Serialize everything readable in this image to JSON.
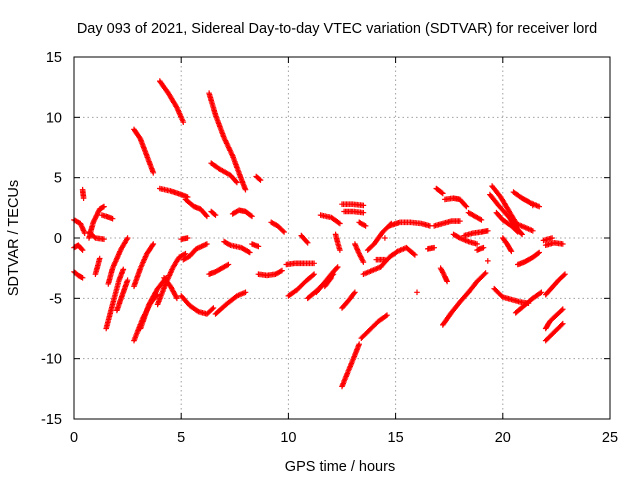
{
  "chart_data": {
    "type": "scatter",
    "title": "Day 093 of 2021, Sidereal Day-to-day VTEC variation (SDTVAR) for receiver lord",
    "xlabel": "GPS time / hours",
    "ylabel": "SDTVAR / TECUs",
    "xlim": [
      0,
      25
    ],
    "ylim": [
      -15,
      15
    ],
    "xticks": [
      0,
      5,
      10,
      15,
      20,
      25
    ],
    "yticks": [
      -15,
      -10,
      -5,
      0,
      5,
      10,
      15
    ],
    "grid": true,
    "marker": "+",
    "color": "#ff0000",
    "segments": [
      [
        [
          0.0,
          1.5
        ],
        [
          0.3,
          1.2
        ],
        [
          0.5,
          0.4
        ]
      ],
      [
        [
          0.0,
          -0.8
        ],
        [
          0.2,
          -0.6
        ],
        [
          0.4,
          -1.0
        ]
      ],
      [
        [
          0.0,
          -2.8
        ],
        [
          0.2,
          -3.1
        ],
        [
          0.4,
          -3.3
        ]
      ],
      [
        [
          0.4,
          4.0
        ],
        [
          0.45,
          3.3
        ]
      ],
      [
        [
          0.7,
          0.0
        ],
        [
          0.9,
          1.3
        ],
        [
          1.2,
          2.4
        ],
        [
          1.4,
          2.6
        ]
      ],
      [
        [
          0.7,
          0.5
        ],
        [
          1.0,
          0.0
        ],
        [
          1.4,
          -0.1
        ]
      ],
      [
        [
          1.3,
          1.9
        ],
        [
          1.5,
          1.8
        ],
        [
          1.8,
          1.6
        ]
      ],
      [
        [
          1.0,
          -3.0
        ],
        [
          1.2,
          -1.7
        ]
      ],
      [
        [
          1.5,
          -7.5
        ],
        [
          1.8,
          -5.5
        ],
        [
          2.1,
          -3.5
        ],
        [
          2.3,
          -2.6
        ]
      ],
      [
        [
          1.6,
          -3.8
        ],
        [
          1.8,
          -2.5
        ],
        [
          2.2,
          -0.9
        ],
        [
          2.5,
          0.0
        ]
      ],
      [
        [
          2.0,
          -6.0
        ],
        [
          2.3,
          -4.5
        ],
        [
          2.5,
          -3.5
        ]
      ],
      [
        [
          2.8,
          9.0
        ],
        [
          3.1,
          8.2
        ],
        [
          3.4,
          6.8
        ],
        [
          3.7,
          5.4
        ]
      ],
      [
        [
          2.8,
          -8.5
        ],
        [
          3.2,
          -6.7
        ],
        [
          3.6,
          -5.3
        ],
        [
          3.9,
          -4.7
        ]
      ],
      [
        [
          2.8,
          -4.0
        ],
        [
          3.1,
          -2.5
        ],
        [
          3.4,
          -1.3
        ],
        [
          3.7,
          -0.5
        ]
      ],
      [
        [
          3.1,
          -7.5
        ],
        [
          3.5,
          -5.5
        ],
        [
          3.9,
          -4.2
        ],
        [
          4.3,
          -3.3
        ]
      ],
      [
        [
          4.0,
          13.0
        ],
        [
          4.4,
          12.0
        ],
        [
          4.8,
          10.8
        ],
        [
          5.1,
          9.6
        ]
      ],
      [
        [
          4.0,
          4.1
        ],
        [
          4.5,
          3.9
        ],
        [
          5.0,
          3.6
        ],
        [
          5.3,
          3.4
        ]
      ],
      [
        [
          3.9,
          -5.5
        ],
        [
          4.3,
          -3.7
        ],
        [
          4.6,
          -2.5
        ],
        [
          4.9,
          -1.6
        ],
        [
          5.2,
          -1.3
        ]
      ],
      [
        [
          4.2,
          -3.3
        ],
        [
          4.5,
          -4.0
        ],
        [
          4.8,
          -5.0
        ]
      ],
      [
        [
          5.2,
          3.2
        ],
        [
          5.6,
          2.6
        ],
        [
          5.9,
          2.4
        ],
        [
          6.2,
          1.8
        ]
      ],
      [
        [
          5.0,
          -4.8
        ],
        [
          5.4,
          -5.6
        ],
        [
          5.8,
          -6.1
        ],
        [
          6.2,
          -6.3
        ],
        [
          6.5,
          -5.8
        ]
      ],
      [
        [
          5.1,
          -1.8
        ],
        [
          5.4,
          -1.5
        ],
        [
          5.7,
          -0.9
        ],
        [
          6.2,
          -0.5
        ]
      ],
      [
        [
          5.0,
          -0.1
        ],
        [
          5.3,
          0.0
        ]
      ],
      [
        [
          6.3,
          12.0
        ],
        [
          6.6,
          10.2
        ],
        [
          7.0,
          8.3
        ],
        [
          7.4,
          6.8
        ],
        [
          7.8,
          4.9
        ],
        [
          8.0,
          4.0
        ]
      ],
      [
        [
          6.4,
          6.2
        ],
        [
          6.8,
          5.7
        ],
        [
          7.3,
          5.2
        ],
        [
          7.6,
          4.6
        ]
      ],
      [
        [
          6.4,
          2.2
        ],
        [
          6.6,
          1.9
        ]
      ],
      [
        [
          6.3,
          -3.0
        ],
        [
          6.6,
          -2.8
        ],
        [
          6.9,
          -2.5
        ],
        [
          7.2,
          -2.2
        ]
      ],
      [
        [
          6.6,
          -6.3
        ],
        [
          7.1,
          -5.5
        ],
        [
          7.6,
          -4.8
        ],
        [
          8.0,
          -4.5
        ]
      ],
      [
        [
          7.0,
          -0.3
        ],
        [
          7.3,
          -0.6
        ],
        [
          7.8,
          -0.8
        ],
        [
          8.2,
          -1.2
        ]
      ],
      [
        [
          7.4,
          2.0
        ],
        [
          7.7,
          2.3
        ],
        [
          8.0,
          2.2
        ],
        [
          8.3,
          1.8
        ]
      ],
      [
        [
          8.3,
          -0.5
        ],
        [
          8.6,
          -0.7
        ]
      ],
      [
        [
          8.5,
          5.1
        ],
        [
          8.7,
          4.8
        ]
      ],
      [
        [
          8.6,
          -3.0
        ],
        [
          9.0,
          -3.1
        ],
        [
          9.4,
          -3.0
        ],
        [
          9.7,
          -2.7
        ]
      ],
      [
        [
          9.2,
          1.3
        ],
        [
          9.5,
          1.0
        ],
        [
          9.8,
          0.5
        ]
      ],
      [
        [
          9.9,
          -2.2
        ],
        [
          10.3,
          -2.1
        ],
        [
          10.7,
          -2.1
        ],
        [
          11.2,
          -2.1
        ]
      ],
      [
        [
          10.0,
          -4.8
        ],
        [
          10.4,
          -4.3
        ],
        [
          10.8,
          -3.6
        ],
        [
          11.2,
          -3.0
        ]
      ],
      [
        [
          10.6,
          0.2
        ],
        [
          10.9,
          -0.4
        ]
      ],
      [
        [
          10.9,
          -5.0
        ],
        [
          11.3,
          -4.4
        ],
        [
          11.8,
          -3.5
        ],
        [
          12.1,
          -3.0
        ]
      ],
      [
        [
          11.3,
          -4.5
        ],
        [
          11.6,
          -3.9
        ],
        [
          12.0,
          -3.0
        ],
        [
          12.3,
          -2.4
        ]
      ],
      [
        [
          11.7,
          -4.0
        ],
        [
          12.0,
          -3.3
        ]
      ],
      [
        [
          11.5,
          1.9
        ],
        [
          12.0,
          1.7
        ],
        [
          12.4,
          1.2
        ]
      ],
      [
        [
          12.2,
          0.3
        ],
        [
          12.3,
          -0.4
        ],
        [
          12.4,
          -1.0
        ]
      ],
      [
        [
          12.5,
          -12.3
        ],
        [
          12.8,
          -11.0
        ],
        [
          13.1,
          -9.7
        ],
        [
          13.3,
          -8.8
        ]
      ],
      [
        [
          12.5,
          -5.8
        ],
        [
          12.8,
          -5.2
        ],
        [
          13.1,
          -4.5
        ]
      ],
      [
        [
          12.5,
          2.8
        ],
        [
          13.0,
          2.8
        ],
        [
          13.5,
          2.7
        ]
      ],
      [
        [
          12.6,
          2.2
        ],
        [
          13.0,
          2.2
        ],
        [
          13.5,
          2.1
        ]
      ],
      [
        [
          13.1,
          -0.5
        ],
        [
          13.3,
          -1.3
        ],
        [
          13.5,
          -2.0
        ]
      ],
      [
        [
          13.3,
          1.3
        ],
        [
          13.6,
          1.0
        ]
      ],
      [
        [
          13.5,
          -3.0
        ],
        [
          13.9,
          -2.7
        ],
        [
          14.3,
          -2.4
        ]
      ],
      [
        [
          13.4,
          -8.3
        ],
        [
          13.8,
          -7.6
        ],
        [
          14.2,
          -6.9
        ],
        [
          14.6,
          -6.4
        ]
      ],
      [
        [
          13.7,
          -1.0
        ],
        [
          14.0,
          -0.5
        ],
        [
          14.4,
          0.5
        ],
        [
          14.8,
          1.2
        ]
      ],
      [
        [
          14.1,
          -1.8
        ],
        [
          14.5,
          -1.8
        ]
      ],
      [
        [
          14.3,
          -2.4
        ],
        [
          14.7,
          -1.6
        ],
        [
          15.1,
          -1.1
        ],
        [
          15.5,
          -0.8
        ],
        [
          15.9,
          -1.4
        ]
      ],
      [
        [
          14.5,
          0.0
        ]
      ],
      [
        [
          14.7,
          1.0
        ],
        [
          15.2,
          1.3
        ],
        [
          15.7,
          1.3
        ],
        [
          16.2,
          1.2
        ],
        [
          16.6,
          1.0
        ]
      ],
      [
        [
          16.0,
          -4.5
        ]
      ],
      [
        [
          16.5,
          -0.9
        ],
        [
          16.8,
          -0.8
        ]
      ],
      [
        [
          16.8,
          1.0
        ],
        [
          17.2,
          1.2
        ],
        [
          17.6,
          1.4
        ],
        [
          18.0,
          1.4
        ]
      ],
      [
        [
          16.9,
          4.1
        ],
        [
          17.2,
          3.7
        ]
      ],
      [
        [
          17.3,
          3.2
        ],
        [
          17.7,
          3.3
        ],
        [
          18.0,
          3.2
        ],
        [
          18.3,
          2.6
        ]
      ],
      [
        [
          17.1,
          -2.5
        ],
        [
          17.3,
          -3.2
        ],
        [
          17.4,
          -3.6
        ]
      ],
      [
        [
          17.2,
          -7.2
        ],
        [
          17.6,
          -6.2
        ],
        [
          18.0,
          -5.3
        ],
        [
          18.4,
          -4.5
        ]
      ],
      [
        [
          17.7,
          0.3
        ],
        [
          18.0,
          0.0
        ],
        [
          18.4,
          -0.3
        ],
        [
          18.8,
          -0.5
        ]
      ],
      [
        [
          18.4,
          -4.5
        ],
        [
          18.8,
          -3.6
        ],
        [
          19.2,
          -2.9
        ]
      ],
      [
        [
          18.4,
          2.1
        ],
        [
          18.7,
          1.8
        ],
        [
          19.0,
          1.5
        ]
      ],
      [
        [
          18.2,
          0.2
        ],
        [
          18.6,
          0.4
        ],
        [
          19.0,
          0.5
        ],
        [
          19.3,
          0.6
        ]
      ],
      [
        [
          18.8,
          -1.0
        ],
        [
          19.1,
          -0.8
        ]
      ],
      [
        [
          19.3,
          -1.9
        ]
      ],
      [
        [
          19.4,
          3.6
        ],
        [
          19.8,
          2.7
        ],
        [
          20.3,
          1.7
        ],
        [
          20.7,
          0.7
        ],
        [
          20.9,
          0.3
        ]
      ],
      [
        [
          19.5,
          4.3
        ],
        [
          19.9,
          3.4
        ],
        [
          20.3,
          2.2
        ],
        [
          20.6,
          1.3
        ]
      ],
      [
        [
          19.6,
          -4.2
        ],
        [
          20.0,
          -4.9
        ],
        [
          20.4,
          -5.1
        ],
        [
          20.8,
          -5.3
        ],
        [
          21.2,
          -5.4
        ]
      ],
      [
        [
          19.7,
          2.1
        ],
        [
          20.0,
          1.5
        ],
        [
          20.4,
          1.0
        ],
        [
          20.7,
          0.5
        ]
      ],
      [
        [
          20.0,
          0.0
        ],
        [
          20.2,
          -0.5
        ],
        [
          20.4,
          -1.1
        ]
      ],
      [
        [
          20.5,
          3.8
        ],
        [
          20.9,
          3.3
        ],
        [
          21.3,
          2.9
        ],
        [
          21.7,
          2.6
        ]
      ],
      [
        [
          20.6,
          1.2
        ],
        [
          21.0,
          0.9
        ],
        [
          21.4,
          0.6
        ]
      ],
      [
        [
          20.7,
          -2.2
        ],
        [
          21.0,
          -2.0
        ],
        [
          21.4,
          -1.6
        ],
        [
          21.7,
          -1.2
        ]
      ],
      [
        [
          20.6,
          -6.2
        ],
        [
          21.0,
          -5.6
        ],
        [
          21.4,
          -5.0
        ],
        [
          21.8,
          -4.5
        ]
      ],
      [
        [
          21.4,
          2.7
        ]
      ],
      [
        [
          22.0,
          -0.6
        ],
        [
          22.4,
          -0.4
        ],
        [
          22.8,
          -0.5
        ]
      ],
      [
        [
          21.9,
          -0.2
        ],
        [
          22.3,
          0.0
        ]
      ],
      [
        [
          22.0,
          -4.7
        ],
        [
          22.3,
          -4.1
        ],
        [
          22.6,
          -3.5
        ],
        [
          22.9,
          -3.0
        ]
      ],
      [
        [
          22.0,
          -7.5
        ],
        [
          22.2,
          -6.9
        ],
        [
          22.5,
          -6.4
        ],
        [
          22.8,
          -5.9
        ]
      ],
      [
        [
          22.0,
          -8.5
        ],
        [
          22.4,
          -7.8
        ],
        [
          22.8,
          -7.1
        ]
      ]
    ]
  }
}
